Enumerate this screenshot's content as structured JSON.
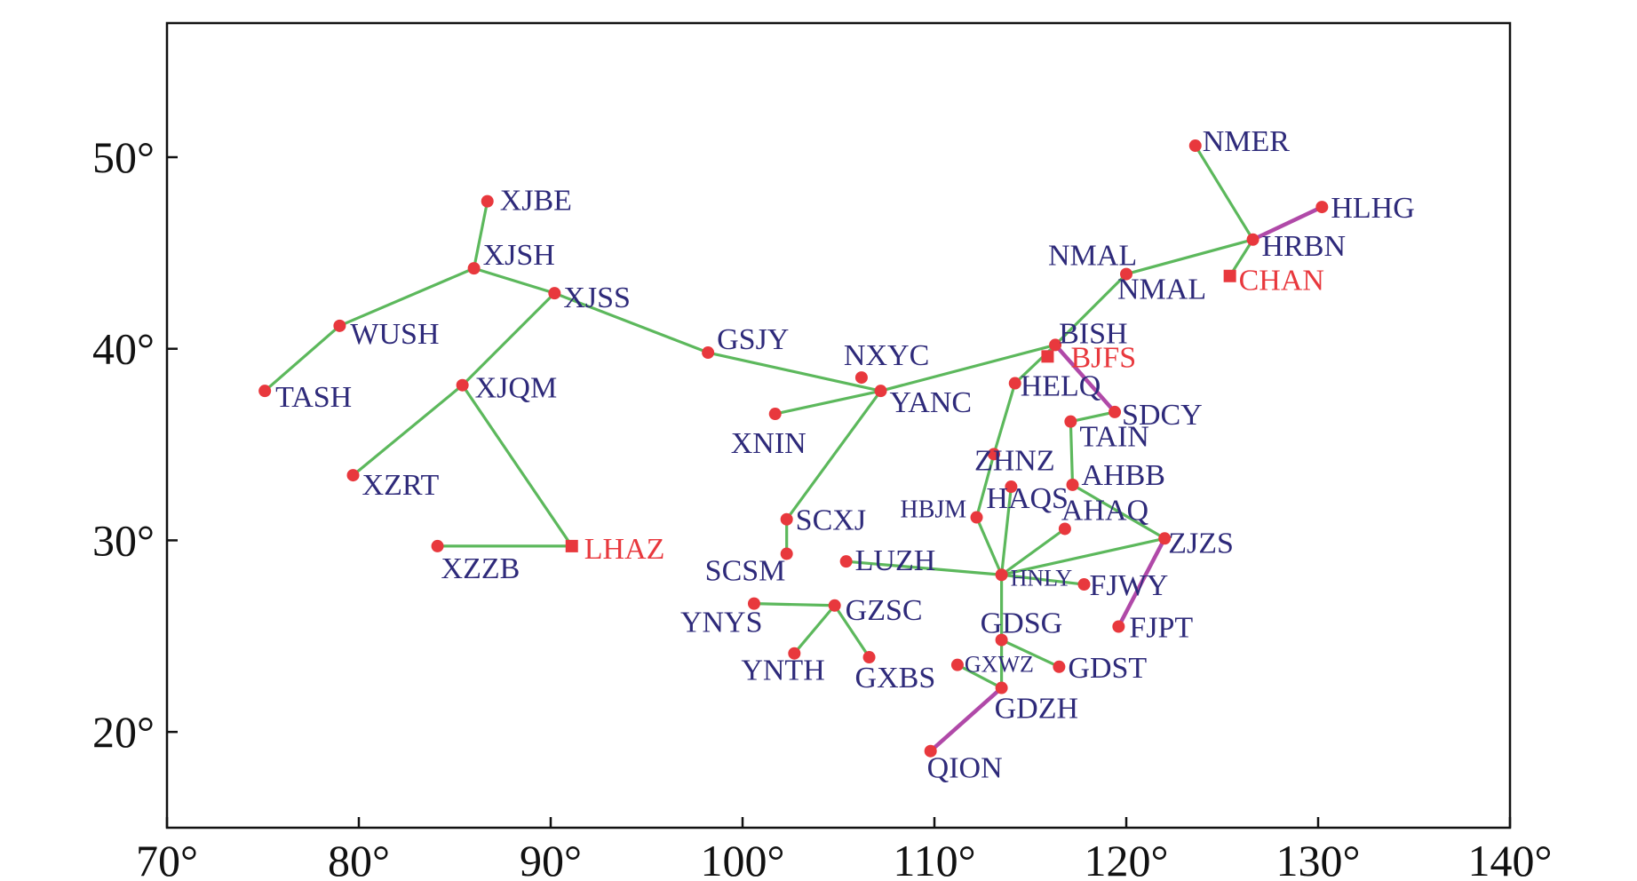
{
  "chart_data": {
    "type": "scatter",
    "title": "",
    "xlabel": "",
    "ylabel": "",
    "xlim": [
      70,
      140
    ],
    "ylim": [
      15,
      57
    ],
    "grid": false,
    "legend": "none",
    "x_ticks": [
      {
        "value": 70,
        "label": "70°"
      },
      {
        "value": 80,
        "label": "80°"
      },
      {
        "value": 90,
        "label": "90°"
      },
      {
        "value": 100,
        "label": "100°"
      },
      {
        "value": 110,
        "label": "110°"
      },
      {
        "value": 120,
        "label": "120°"
      },
      {
        "value": 130,
        "label": "130°"
      },
      {
        "value": 140,
        "label": "140°"
      }
    ],
    "y_ticks": [
      {
        "value": 20,
        "label": "20°"
      },
      {
        "value": 30,
        "label": "30°"
      },
      {
        "value": 40,
        "label": "40°"
      },
      {
        "value": 50,
        "label": "50°"
      }
    ],
    "colors": {
      "station_marker": "#e8383d",
      "station_label": "#2e2a7a",
      "reference_label": "#e8383d",
      "green_link": "#5cb85c",
      "purple_link": "#b049a8",
      "axis": "#111111"
    },
    "stations": [
      {
        "name": "XJBE",
        "lon": 86.7,
        "lat": 47.7,
        "marker": "circle",
        "label": "XJBE"
      },
      {
        "name": "XJSH",
        "lon": 86.0,
        "lat": 44.2,
        "marker": "circle",
        "label": "XJSH"
      },
      {
        "name": "XJSS",
        "lon": 90.2,
        "lat": 42.9,
        "marker": "circle",
        "label": "XJSS"
      },
      {
        "name": "WUSH",
        "lon": 79.0,
        "lat": 41.2,
        "marker": "circle",
        "label": "WUSH"
      },
      {
        "name": "TASH",
        "lon": 75.1,
        "lat": 37.8,
        "marker": "circle",
        "label": "TASH"
      },
      {
        "name": "XJQM",
        "lon": 85.4,
        "lat": 38.1,
        "marker": "circle",
        "label": "XJQM"
      },
      {
        "name": "XZRT",
        "lon": 79.7,
        "lat": 33.4,
        "marker": "circle",
        "label": "XZRT"
      },
      {
        "name": "XZZB",
        "lon": 84.1,
        "lat": 29.7,
        "marker": "circle",
        "label": "XZZB"
      },
      {
        "name": "LHAZ",
        "lon": 91.1,
        "lat": 29.7,
        "marker": "square",
        "label": "LHAZ",
        "reference": true
      },
      {
        "name": "GSJY",
        "lon": 98.2,
        "lat": 39.8,
        "marker": "circle",
        "label": "GSJY"
      },
      {
        "name": "NXYC",
        "lon": 106.2,
        "lat": 38.5,
        "marker": "circle",
        "label": "NXYC"
      },
      {
        "name": "YANC",
        "lon": 107.2,
        "lat": 37.8,
        "marker": "circle",
        "label": "YANC"
      },
      {
        "name": "XNIN",
        "lon": 101.7,
        "lat": 36.6,
        "marker": "circle",
        "label": "XNIN"
      },
      {
        "name": "SCXJ",
        "lon": 102.3,
        "lat": 31.1,
        "marker": "circle",
        "label": "SCXJ"
      },
      {
        "name": "SCSM",
        "lon": 102.3,
        "lat": 29.3,
        "marker": "circle",
        "label": "SCSM"
      },
      {
        "name": "LUZH",
        "lon": 105.4,
        "lat": 28.9,
        "marker": "circle",
        "label": "LUZH"
      },
      {
        "name": "YNYS",
        "lon": 100.6,
        "lat": 26.7,
        "marker": "circle",
        "label": "YNYS"
      },
      {
        "name": "GZSC",
        "lon": 104.8,
        "lat": 26.6,
        "marker": "circle",
        "label": "GZSC"
      },
      {
        "name": "YNTH",
        "lon": 102.7,
        "lat": 24.1,
        "marker": "circle",
        "label": "YNTH"
      },
      {
        "name": "GXBS",
        "lon": 106.6,
        "lat": 23.9,
        "marker": "circle",
        "label": "GXBS"
      },
      {
        "name": "GXWZ",
        "lon": 111.2,
        "lat": 23.5,
        "marker": "circle",
        "label": "GXWZ"
      },
      {
        "name": "GDZH",
        "lon": 113.5,
        "lat": 22.3,
        "marker": "circle",
        "label": "GDZH"
      },
      {
        "name": "QION",
        "lon": 109.8,
        "lat": 19.0,
        "marker": "circle",
        "label": "QION"
      },
      {
        "name": "GDSG",
        "lon": 113.5,
        "lat": 24.8,
        "marker": "circle",
        "label": "GDSG"
      },
      {
        "name": "GDST",
        "lon": 116.5,
        "lat": 23.4,
        "marker": "circle",
        "label": "GDST"
      },
      {
        "name": "HNLY",
        "lon": 113.5,
        "lat": 28.2,
        "marker": "circle",
        "label": "HNLY"
      },
      {
        "name": "HBJM",
        "lon": 112.2,
        "lat": 31.2,
        "marker": "circle",
        "label": "HBJM"
      },
      {
        "name": "HAQS",
        "lon": 114.0,
        "lat": 32.8,
        "marker": "circle",
        "label": "HAQS"
      },
      {
        "name": "ZHNZ",
        "lon": 113.1,
        "lat": 34.5,
        "marker": "circle",
        "label": "ZHNZ"
      },
      {
        "name": "AHAQ",
        "lon": 116.8,
        "lat": 30.6,
        "marker": "circle",
        "label": "AHAQ"
      },
      {
        "name": "AHBB",
        "lon": 117.2,
        "lat": 32.9,
        "marker": "circle",
        "label": "AHBB"
      },
      {
        "name": "ZJZS",
        "lon": 122.0,
        "lat": 30.1,
        "marker": "circle",
        "label": "ZJZS"
      },
      {
        "name": "FJWY",
        "lon": 117.8,
        "lat": 27.7,
        "marker": "circle",
        "label": "FJWY"
      },
      {
        "name": "FJPT",
        "lon": 119.6,
        "lat": 25.5,
        "marker": "circle",
        "label": "FJPT"
      },
      {
        "name": "TAIN",
        "lon": 117.1,
        "lat": 36.2,
        "marker": "circle",
        "label": "TAIN"
      },
      {
        "name": "SDCY",
        "lon": 119.4,
        "lat": 36.7,
        "marker": "circle",
        "label": "SDCY"
      },
      {
        "name": "HELQ",
        "lon": 114.2,
        "lat": 38.2,
        "marker": "circle",
        "label": "HELQ"
      },
      {
        "name": "BISH",
        "lon": 116.3,
        "lat": 40.2,
        "marker": "circle",
        "label": "BISH"
      },
      {
        "name": "BJFS",
        "lon": 115.9,
        "lat": 39.6,
        "marker": "square",
        "label": "BJFS",
        "reference": true
      },
      {
        "name": "NMAL",
        "lon": 120.0,
        "lat": 43.9,
        "marker": "circle",
        "label": "NMAL",
        "label2": "NMAL"
      },
      {
        "name": "NMER",
        "lon": 123.6,
        "lat": 50.6,
        "marker": "circle",
        "label": "NMER"
      },
      {
        "name": "HRBN",
        "lon": 126.6,
        "lat": 45.7,
        "marker": "circle",
        "label": "HRBN"
      },
      {
        "name": "HLHG",
        "lon": 130.2,
        "lat": 47.4,
        "marker": "circle",
        "label": "HLHG"
      },
      {
        "name": "CHAN",
        "lon": 125.4,
        "lat": 43.8,
        "marker": "square",
        "label": "CHAN",
        "reference": true
      }
    ],
    "links": [
      {
        "from": "XJBE",
        "to": "XJSH",
        "color": "green"
      },
      {
        "from": "XJSH",
        "to": "WUSH",
        "color": "green"
      },
      {
        "from": "WUSH",
        "to": "TASH",
        "color": "green"
      },
      {
        "from": "XJSH",
        "to": "XJSS",
        "color": "green"
      },
      {
        "from": "XJSS",
        "to": "XJQM",
        "color": "green"
      },
      {
        "from": "XJQM",
        "to": "XZRT",
        "color": "green"
      },
      {
        "from": "XJQM",
        "to": "LHAZ",
        "color": "green"
      },
      {
        "from": "XZZB",
        "to": "LHAZ",
        "color": "green"
      },
      {
        "from": "XJSS",
        "to": "GSJY",
        "color": "green"
      },
      {
        "from": "GSJY",
        "to": "YANC",
        "color": "green"
      },
      {
        "from": "XNIN",
        "to": "YANC",
        "color": "green"
      },
      {
        "from": "YANC",
        "to": "SCXJ",
        "color": "green"
      },
      {
        "from": "SCXJ",
        "to": "SCSM",
        "color": "green"
      },
      {
        "from": "YANC",
        "to": "BISH",
        "color": "green"
      },
      {
        "from": "BISH",
        "to": "NMAL",
        "color": "green"
      },
      {
        "from": "NMAL",
        "to": "HRBN",
        "color": "green"
      },
      {
        "from": "HRBN",
        "to": "NMER",
        "color": "green"
      },
      {
        "from": "HRBN",
        "to": "CHAN",
        "color": "green"
      },
      {
        "from": "HRBN",
        "to": "HLHG",
        "color": "purple"
      },
      {
        "from": "BISH",
        "to": "SDCY",
        "color": "purple"
      },
      {
        "from": "BISH",
        "to": "HELQ",
        "color": "green"
      },
      {
        "from": "HELQ",
        "to": "ZHNZ",
        "color": "green"
      },
      {
        "from": "ZHNZ",
        "to": "HBJM",
        "color": "green"
      },
      {
        "from": "HBJM",
        "to": "HNLY",
        "color": "green"
      },
      {
        "from": "HAQS",
        "to": "HNLY",
        "color": "green"
      },
      {
        "from": "AHAQ",
        "to": "HNLY",
        "color": "green"
      },
      {
        "from": "ZJZS",
        "to": "HNLY",
        "color": "green"
      },
      {
        "from": "AHBB",
        "to": "ZJZS",
        "color": "green"
      },
      {
        "from": "AHBB",
        "to": "TAIN",
        "color": "green"
      },
      {
        "from": "TAIN",
        "to": "SDCY",
        "color": "green"
      },
      {
        "from": "HNLY",
        "to": "FJWY",
        "color": "green"
      },
      {
        "from": "ZJZS",
        "to": "FJPT",
        "color": "purple"
      },
      {
        "from": "LUZH",
        "to": "HNLY",
        "color": "green"
      },
      {
        "from": "HNLY",
        "to": "GDSG",
        "color": "green"
      },
      {
        "from": "GDSG",
        "to": "GDST",
        "color": "green"
      },
      {
        "from": "GDSG",
        "to": "GDZH",
        "color": "green"
      },
      {
        "from": "GXWZ",
        "to": "GDZH",
        "color": "green"
      },
      {
        "from": "GDZH",
        "to": "QION",
        "color": "purple"
      },
      {
        "from": "YNYS",
        "to": "GZSC",
        "color": "green"
      },
      {
        "from": "GZSC",
        "to": "YNTH",
        "color": "green"
      },
      {
        "from": "GZSC",
        "to": "GXBS",
        "color": "green"
      }
    ]
  }
}
